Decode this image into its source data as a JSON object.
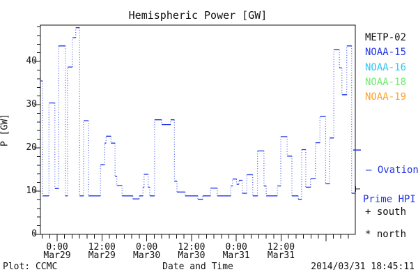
{
  "title": "Hemispheric Power [GW]",
  "y_axis": {
    "label": "P [GW]",
    "tick_values": [
      0,
      10,
      20,
      30,
      40
    ],
    "minor_step_gw": 2
  },
  "footer": {
    "plot_credit": "Plot: CCMC",
    "x_axis_label": "Date and Time",
    "timestamp": "2014/03/31 18:45:11"
  },
  "legend": [
    {
      "label": "METP-02",
      "color": "#111111"
    },
    {
      "label": "NOAA-15",
      "color": "#2236e6"
    },
    {
      "label": "NOAA-16",
      "color": "#2ec6f2"
    },
    {
      "label": "NOAA-18",
      "color": "#74e874"
    },
    {
      "label": "NOAA-19",
      "color": "#ffa226"
    }
  ],
  "annotations": {
    "ovation_line1": "– Ovation",
    "ovation_line2": "Prime HPI",
    "south_label": "+ south",
    "north_label": "* north",
    "ovation_marker_gw": 19.5,
    "south_marker_gw": 10.5
  },
  "colors": {
    "line_blue": "#2236e6",
    "axis_black": "#111111",
    "background": "#ffffff"
  },
  "chart_data": {
    "type": "line",
    "style": "step-dotted",
    "title": "Hemispheric Power [GW]",
    "xlabel": "Date and Time",
    "ylabel": "P [GW]",
    "ylim": [
      0,
      48.4
    ],
    "x_hours_range": [
      -4.5,
      80
    ],
    "grid": false,
    "legend_position": "right-margin",
    "x_major_ticks_hours": [
      0,
      12,
      24,
      36,
      48,
      60,
      72
    ],
    "x_minor_step_hours": 2,
    "x_tick_labels": [
      {
        "time": "0:00",
        "date": "Mar29",
        "hour": 0
      },
      {
        "time": "12:00",
        "date": "Mar29",
        "hour": 12
      },
      {
        "time": "0:00",
        "date": "Mar30",
        "hour": 24
      },
      {
        "time": "12:00",
        "date": "Mar30",
        "hour": 36
      },
      {
        "time": "0:00",
        "date": "Mar31",
        "hour": 48
      },
      {
        "time": "12:00",
        "date": "Mar31",
        "hour": 60
      }
    ],
    "series": [
      {
        "name": "Hemispheric Power (Ovation Prime HPI)",
        "color": "#2236e6",
        "units": "GW",
        "x_units": "hours since 2014-03-29 00:00",
        "end_hour": 79.9,
        "points": [
          [
            -4.5,
            35.5
          ],
          [
            -3.9,
            8.9
          ],
          [
            -2.2,
            30.4
          ],
          [
            -0.6,
            10.6
          ],
          [
            0.4,
            43.6
          ],
          [
            2.2,
            8.9
          ],
          [
            2.8,
            38.7
          ],
          [
            4.1,
            45.5
          ],
          [
            5.0,
            47.8
          ],
          [
            6.0,
            8.9
          ],
          [
            7.1,
            26.3
          ],
          [
            8.4,
            8.9
          ],
          [
            11.6,
            16.1
          ],
          [
            12.7,
            21.1
          ],
          [
            13.1,
            22.7
          ],
          [
            14.4,
            21.1
          ],
          [
            15.5,
            13.4
          ],
          [
            16.0,
            11.3
          ],
          [
            17.4,
            8.9
          ],
          [
            20.3,
            8.2
          ],
          [
            22.0,
            8.9
          ],
          [
            23.0,
            10.9
          ],
          [
            23.3,
            13.9
          ],
          [
            24.4,
            10.9
          ],
          [
            24.8,
            8.9
          ],
          [
            26.1,
            26.5
          ],
          [
            28.0,
            25.4
          ],
          [
            30.4,
            26.5
          ],
          [
            31.4,
            12.3
          ],
          [
            32.1,
            9.8
          ],
          [
            34.3,
            8.9
          ],
          [
            37.7,
            8.1
          ],
          [
            39.0,
            8.9
          ],
          [
            41.1,
            10.7
          ],
          [
            42.9,
            8.9
          ],
          [
            46.5,
            11.2
          ],
          [
            47.0,
            12.8
          ],
          [
            48.1,
            11.6
          ],
          [
            48.7,
            12.5
          ],
          [
            49.6,
            9.5
          ],
          [
            50.8,
            13.8
          ],
          [
            52.4,
            8.9
          ],
          [
            53.7,
            19.3
          ],
          [
            55.4,
            11.2
          ],
          [
            56.0,
            8.9
          ],
          [
            59.0,
            11.2
          ],
          [
            59.9,
            22.6
          ],
          [
            61.6,
            18.1
          ],
          [
            62.9,
            8.9
          ],
          [
            64.6,
            8.1
          ],
          [
            65.5,
            19.6
          ],
          [
            66.6,
            10.9
          ],
          [
            67.9,
            12.9
          ],
          [
            69.2,
            21.2
          ],
          [
            70.4,
            27.3
          ],
          [
            71.9,
            11.7
          ],
          [
            73.0,
            22.3
          ],
          [
            74.1,
            42.7
          ],
          [
            75.6,
            38.5
          ],
          [
            76.3,
            32.3
          ],
          [
            77.6,
            43.6
          ],
          [
            78.9,
            9.5
          ]
        ]
      }
    ]
  }
}
